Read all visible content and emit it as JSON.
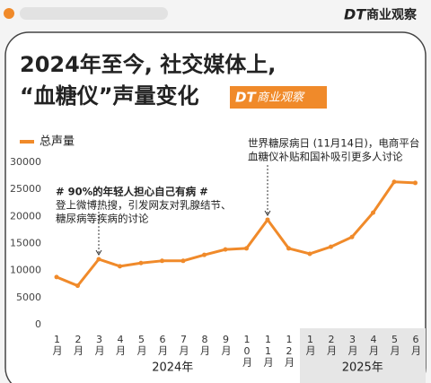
{
  "header": {
    "logo_mark": "DT",
    "logo_text": "商业观察"
  },
  "chart_data": {
    "type": "line",
    "title_lines": [
      "2024年至今, 社交媒体上,",
      "“血糖仪”声量变化"
    ],
    "badge": {
      "mark": "DT",
      "text": "商业观察"
    },
    "categories": [
      "1月",
      "2月",
      "3月",
      "4月",
      "5月",
      "6月",
      "7月",
      "8月",
      "9月",
      "10月",
      "11月",
      "12月",
      "1月",
      "2月",
      "3月",
      "4月",
      "5月",
      "6月"
    ],
    "year_labels": [
      "2024年",
      "2025年"
    ],
    "series": [
      {
        "name": "总声量",
        "color": "#f08a2a",
        "values": [
          8800,
          7200,
          12100,
          10800,
          11400,
          11800,
          11800,
          12900,
          13900,
          14100,
          19400,
          14100,
          13100,
          14400,
          16200,
          20700,
          26400,
          26200
        ]
      }
    ],
    "ylim": [
      0,
      30000
    ],
    "yticks": [
      0,
      5000,
      10000,
      15000,
      20000,
      25000,
      30000
    ],
    "grid": false,
    "annotations": [
      {
        "lines": [
          "# 90%的年轻人担心自己有病 #",
          "登上微博热搜，引发网友对乳腺结节、",
          "糖尿病等疾病的讨论"
        ]
      },
      {
        "lines": [
          "世界糖尿病日 (11月14日)，电商平台",
          "血糖仪补贴和国补吸引更多人讨论"
        ]
      }
    ]
  }
}
